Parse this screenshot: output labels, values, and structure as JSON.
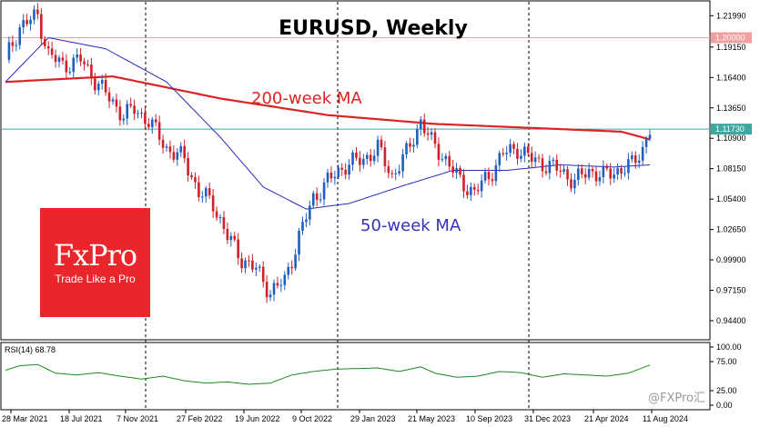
{
  "chart_data": {
    "type": "candlestick",
    "title": "EURUSD, Weekly",
    "annotations": [
      {
        "text": "200-week MA",
        "color": "#dd2222"
      },
      {
        "text": "50-week MA",
        "color": "#3333bb"
      }
    ],
    "price_axis": {
      "ticks": [
        "1.21990",
        "1.19150",
        "1.16400",
        "1.13650",
        "1.10900",
        "1.08150",
        "1.05400",
        "1.02650",
        "0.99900",
        "0.97150",
        "0.94400"
      ],
      "ylim": [
        0.93,
        1.23
      ]
    },
    "price_labels": [
      {
        "text": "1.20000",
        "value": 1.2,
        "bg": "#f0a0a0",
        "line": "#f0a0a0"
      },
      {
        "text": "1.11730",
        "value": 1.1173,
        "bg": "#3ea8a0",
        "line": "#3ea8a0"
      }
    ],
    "x_labels": [
      "28 Mar 2021",
      "18 Jul 2021",
      "7 Nov 2021",
      "27 Feb 2022",
      "19 Jun 2022",
      "9 Oct 2022",
      "29 Jan 2023",
      "21 May 2023",
      "10 Sep 2023",
      "31 Dec 2023",
      "21 Apr 2024",
      "11 Aug 2024"
    ],
    "close_path": [
      [
        0,
        1.18
      ],
      [
        4,
        1.21
      ],
      [
        9,
        1.22
      ],
      [
        12,
        1.185
      ],
      [
        16,
        1.175
      ],
      [
        21,
        1.18
      ],
      [
        25,
        1.162
      ],
      [
        29,
        1.145
      ],
      [
        33,
        1.13
      ],
      [
        36,
        1.135
      ],
      [
        40,
        1.125
      ],
      [
        45,
        1.1
      ],
      [
        50,
        1.09
      ],
      [
        54,
        1.06
      ],
      [
        58,
        1.05
      ],
      [
        62,
        1.02
      ],
      [
        66,
        1.0
      ],
      [
        70,
        0.99
      ],
      [
        74,
        0.97
      ],
      [
        78,
        0.98
      ],
      [
        82,
        1.02
      ],
      [
        86,
        1.055
      ],
      [
        90,
        1.07
      ],
      [
        95,
        1.085
      ],
      [
        100,
        1.09
      ],
      [
        104,
        1.1
      ],
      [
        108,
        1.075
      ],
      [
        112,
        1.095
      ],
      [
        116,
        1.125
      ],
      [
        119,
        1.105
      ],
      [
        123,
        1.09
      ],
      [
        127,
        1.07
      ],
      [
        131,
        1.06
      ],
      [
        135,
        1.075
      ],
      [
        139,
        1.095
      ],
      [
        143,
        1.1
      ],
      [
        147,
        1.09
      ],
      [
        151,
        1.085
      ],
      [
        155,
        1.08
      ],
      [
        159,
        1.07
      ],
      [
        163,
        1.08
      ],
      [
        167,
        1.075
      ],
      [
        171,
        1.08
      ],
      [
        175,
        1.085
      ],
      [
        178,
        1.1
      ],
      [
        180,
        1.117
      ]
    ],
    "ma200": [
      [
        0,
        1.16
      ],
      [
        30,
        1.165
      ],
      [
        60,
        1.145
      ],
      [
        90,
        1.13
      ],
      [
        120,
        1.122
      ],
      [
        150,
        1.118
      ],
      [
        172,
        1.115
      ],
      [
        180,
        1.108
      ]
    ],
    "ma50": [
      [
        0,
        1.16
      ],
      [
        12,
        1.2
      ],
      [
        28,
        1.19
      ],
      [
        45,
        1.16
      ],
      [
        60,
        1.11
      ],
      [
        72,
        1.065
      ],
      [
        84,
        1.045
      ],
      [
        96,
        1.05
      ],
      [
        110,
        1.065
      ],
      [
        125,
        1.08
      ],
      [
        140,
        1.08
      ],
      [
        155,
        1.085
      ],
      [
        170,
        1.083
      ],
      [
        180,
        1.085
      ]
    ],
    "rsi": {
      "label": "RSI(14) 68.78",
      "ticks": [
        "100.00",
        "75.00",
        "25.00",
        "0.00"
      ],
      "values": [
        [
          0,
          60
        ],
        [
          4,
          68
        ],
        [
          9,
          70
        ],
        [
          14,
          55
        ],
        [
          20,
          52
        ],
        [
          26,
          56
        ],
        [
          32,
          50
        ],
        [
          38,
          45
        ],
        [
          44,
          50
        ],
        [
          50,
          42
        ],
        [
          56,
          38
        ],
        [
          62,
          40
        ],
        [
          68,
          36
        ],
        [
          74,
          38
        ],
        [
          80,
          52
        ],
        [
          86,
          58
        ],
        [
          92,
          62
        ],
        [
          98,
          63
        ],
        [
          104,
          64
        ],
        [
          110,
          58
        ],
        [
          116,
          66
        ],
        [
          120,
          55
        ],
        [
          126,
          48
        ],
        [
          132,
          50
        ],
        [
          138,
          58
        ],
        [
          144,
          56
        ],
        [
          150,
          48
        ],
        [
          156,
          54
        ],
        [
          162,
          52
        ],
        [
          168,
          50
        ],
        [
          174,
          55
        ],
        [
          180,
          69
        ]
      ]
    }
  },
  "watermark": "@FXPro汇"
}
